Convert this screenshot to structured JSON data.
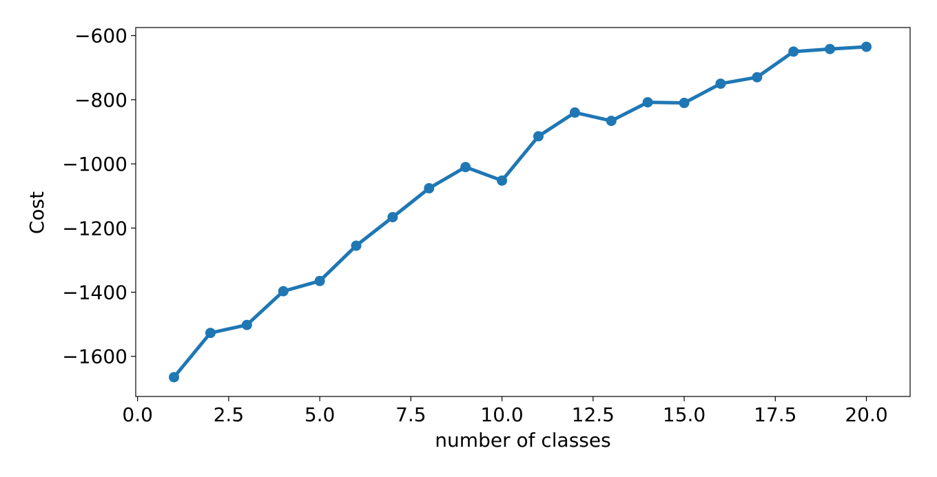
{
  "chart_data": {
    "type": "line",
    "title": "",
    "xlabel": "number of classes",
    "ylabel": "Cost",
    "xlim": [
      -0.05,
      21.2
    ],
    "ylim": [
      -1725,
      -575
    ],
    "xticks": [
      0.0,
      2.5,
      5.0,
      7.5,
      10.0,
      12.5,
      15.0,
      17.5,
      20.0
    ],
    "xtick_labels": [
      "0.0",
      "2.5",
      "5.0",
      "7.5",
      "10.0",
      "12.5",
      "15.0",
      "17.5",
      "20.0"
    ],
    "yticks": [
      -1600,
      -1400,
      -1200,
      -1000,
      -800,
      -600
    ],
    "ytick_labels": [
      "−1600",
      "−1400",
      "−1200",
      "−1000",
      "−800",
      "−600"
    ],
    "grid": false,
    "series": [
      {
        "color": "#1f77b4",
        "marker": "circle",
        "x": [
          1,
          2,
          3,
          4,
          5,
          6,
          7,
          8,
          9,
          10,
          11,
          12,
          13,
          14,
          15,
          16,
          17,
          18,
          19,
          20
        ],
        "y": [
          -1665,
          -1527,
          -1502,
          -1397,
          -1365,
          -1255,
          -1166,
          -1076,
          -1010,
          -1052,
          -914,
          -840,
          -866,
          -808,
          -810,
          -750,
          -730,
          -650,
          -642,
          -635
        ]
      }
    ]
  }
}
